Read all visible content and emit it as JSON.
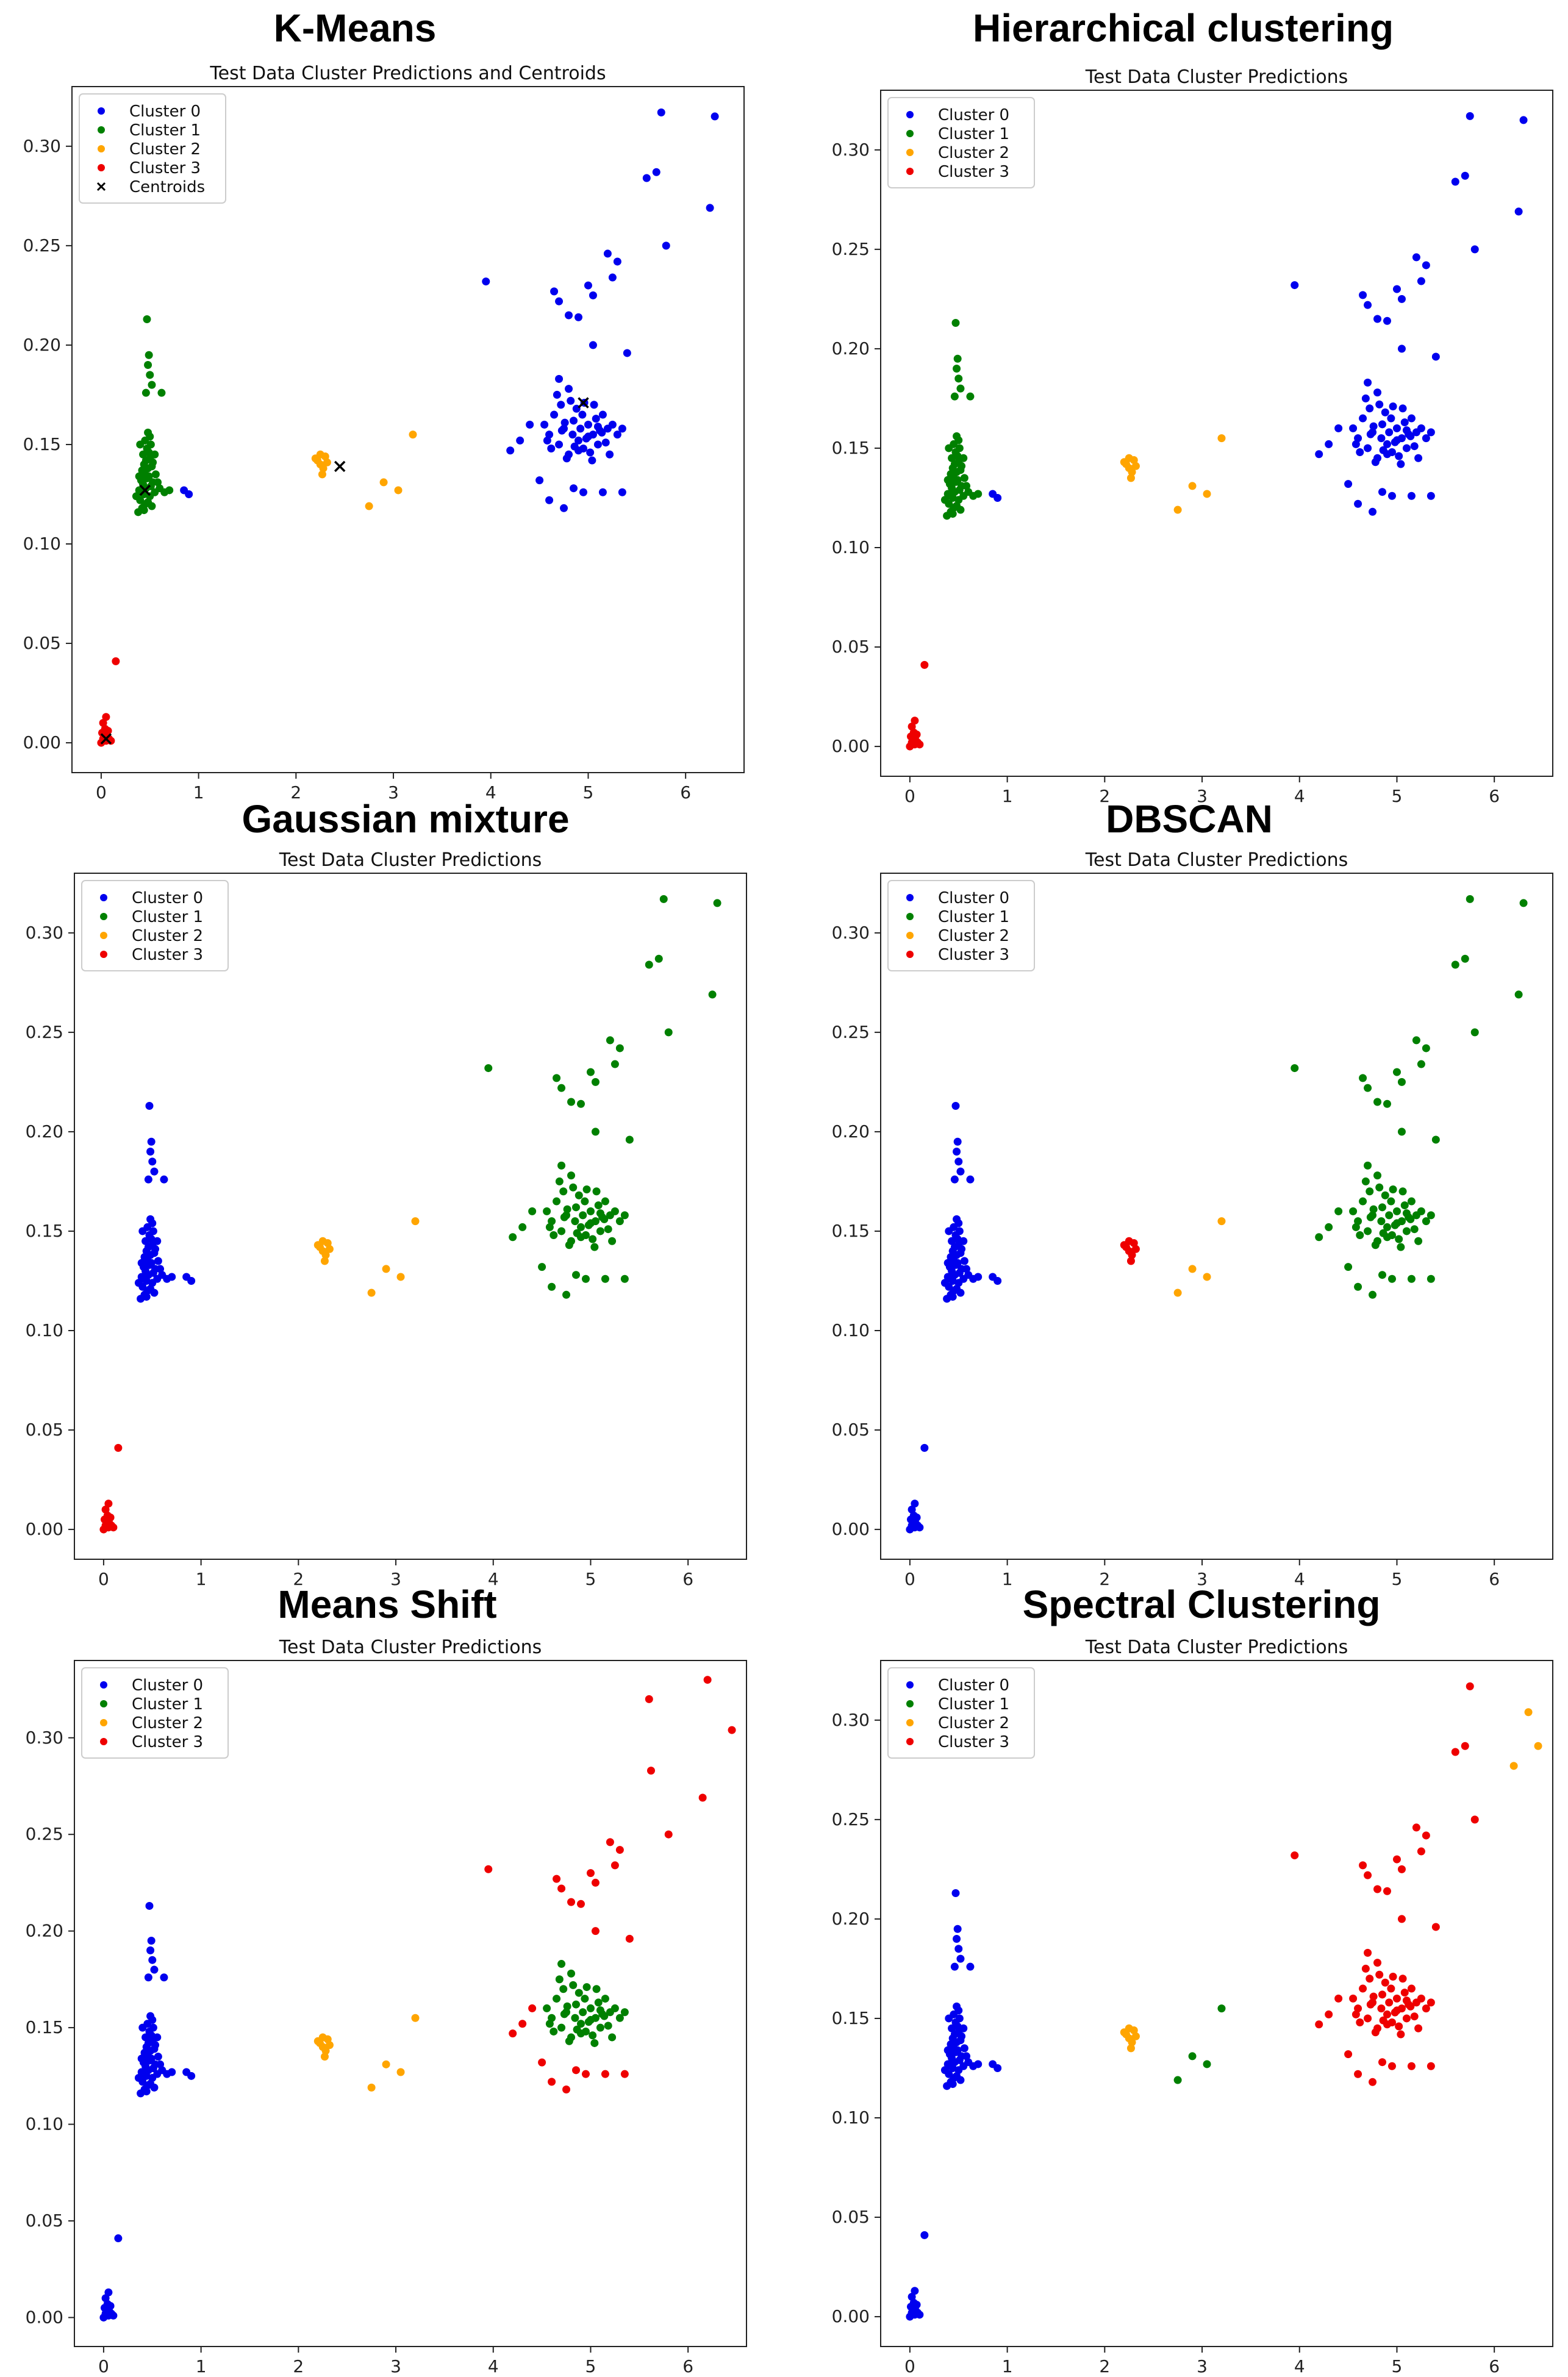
{
  "figure": {
    "panel_titles": [
      "K-Means",
      "Hierarchical clustering",
      "Gaussian mixture",
      "DBSCAN",
      "Means Shift",
      "Spectral Clustering"
    ]
  },
  "colors": {
    "Cluster 0": "#0000ee",
    "Cluster 1": "#008000",
    "Cluster 2": "#ffa500",
    "Cluster 3": "#ee0000",
    "Centroids": "#000000"
  },
  "chart_data": [
    {
      "type": "scatter",
      "panel": "K-Means",
      "title": "Test Data Cluster Predictions and Centroids",
      "xlim": [
        -0.3,
        6.6
      ],
      "ylim": [
        -0.015,
        0.33
      ],
      "xticks": [
        0,
        1,
        2,
        3,
        4,
        5,
        6
      ],
      "yticks": [
        0.0,
        0.05,
        0.1,
        0.15,
        0.2,
        0.25,
        0.3
      ],
      "legend": [
        "Cluster 0",
        "Cluster 1",
        "Cluster 2",
        "Cluster 3",
        "Centroids"
      ],
      "legend_position": "upper-left",
      "assign": {
        "groupA": "Cluster 1",
        "groupB": "Cluster 0",
        "groupC": "Cluster 2",
        "groupD": "Cluster 3",
        "groupE": "Cluster 0",
        "groupF": "Cluster 0",
        "groupG": "Cluster 2"
      },
      "centroids": [
        [
          0.45,
          0.127
        ],
        [
          2.45,
          0.139
        ],
        [
          4.95,
          0.171
        ],
        [
          0.05,
          0.002
        ]
      ]
    },
    {
      "type": "scatter",
      "panel": "Hierarchical clustering",
      "title": "Test Data Cluster Predictions",
      "xlim": [
        -0.3,
        6.6
      ],
      "ylim": [
        -0.015,
        0.33
      ],
      "xticks": [
        0,
        1,
        2,
        3,
        4,
        5,
        6
      ],
      "yticks": [
        0.0,
        0.05,
        0.1,
        0.15,
        0.2,
        0.25,
        0.3
      ],
      "legend": [
        "Cluster 0",
        "Cluster 1",
        "Cluster 2",
        "Cluster 3"
      ],
      "legend_position": "upper-left",
      "assign": {
        "groupA": "Cluster 1",
        "groupB": "Cluster 0",
        "groupC": "Cluster 2",
        "groupD": "Cluster 3",
        "groupE": "Cluster 0",
        "groupF": "Cluster 0",
        "groupG": "Cluster 2"
      }
    },
    {
      "type": "scatter",
      "panel": "Gaussian mixture",
      "title": "Test Data Cluster Predictions",
      "xlim": [
        -0.3,
        6.6
      ],
      "ylim": [
        -0.015,
        0.33
      ],
      "xticks": [
        0,
        1,
        2,
        3,
        4,
        5,
        6
      ],
      "yticks": [
        0.0,
        0.05,
        0.1,
        0.15,
        0.2,
        0.25,
        0.3
      ],
      "legend": [
        "Cluster 0",
        "Cluster 1",
        "Cluster 2",
        "Cluster 3"
      ],
      "legend_position": "upper-left",
      "assign": {
        "groupA": "Cluster 0",
        "groupB": "Cluster 1",
        "groupC": "Cluster 2",
        "groupD": "Cluster 3",
        "groupE": "Cluster 0",
        "groupF": "Cluster 1",
        "groupG": "Cluster 2"
      }
    },
    {
      "type": "scatter",
      "panel": "DBSCAN",
      "title": "Test Data Cluster Predictions",
      "xlim": [
        -0.3,
        6.6
      ],
      "ylim": [
        -0.015,
        0.33
      ],
      "xticks": [
        0,
        1,
        2,
        3,
        4,
        5,
        6
      ],
      "yticks": [
        0.0,
        0.05,
        0.1,
        0.15,
        0.2,
        0.25,
        0.3
      ],
      "legend": [
        "Cluster 0",
        "Cluster 1",
        "Cluster 2",
        "Cluster 3"
      ],
      "legend_position": "upper-left",
      "assign": {
        "groupA": "Cluster 0",
        "groupB": "Cluster 1",
        "groupC": "Cluster 3",
        "groupD": "Cluster 0",
        "groupE": "Cluster 0",
        "groupF": "Cluster 1",
        "groupG": "Cluster 2"
      }
    },
    {
      "type": "scatter",
      "panel": "Means Shift",
      "title": "Test Data Cluster Predictions",
      "xlim": [
        -0.3,
        6.6
      ],
      "ylim": [
        -0.015,
        0.34
      ],
      "xticks": [
        0,
        1,
        2,
        3,
        4,
        5,
        6
      ],
      "yticks": [
        0.0,
        0.05,
        0.1,
        0.15,
        0.2,
        0.25,
        0.3
      ],
      "legend": [
        "Cluster 0",
        "Cluster 1",
        "Cluster 2",
        "Cluster 3"
      ],
      "legend_position": "upper-left",
      "assign": {
        "groupA": "Cluster 0",
        "groupB": "Cluster 1",
        "groupC": "Cluster 2",
        "groupD": "Cluster 0",
        "groupE": "Cluster 0",
        "groupF": "Cluster 3",
        "groupG": "Cluster 2"
      },
      "extreme_override": [
        [
          5.6,
          0.32
        ],
        [
          5.62,
          0.283
        ],
        [
          6.15,
          0.269
        ],
        [
          6.2,
          0.33
        ],
        [
          6.45,
          0.304
        ]
      ]
    },
    {
      "type": "scatter",
      "panel": "Spectral Clustering",
      "title": "Test Data Cluster Predictions",
      "xlim": [
        -0.3,
        6.6
      ],
      "ylim": [
        -0.015,
        0.33
      ],
      "xticks": [
        0,
        1,
        2,
        3,
        4,
        5,
        6
      ],
      "yticks": [
        0.0,
        0.05,
        0.1,
        0.15,
        0.2,
        0.25,
        0.3
      ],
      "legend": [
        "Cluster 0",
        "Cluster 1",
        "Cluster 2",
        "Cluster 3"
      ],
      "legend_position": "upper-left",
      "assign": {
        "groupA": "Cluster 0",
        "groupB": "Cluster 3",
        "groupC": "Cluster 2",
        "groupD": "Cluster 0",
        "groupE": "Cluster 0",
        "groupF": "Cluster 3",
        "groupG": "Cluster 1",
        "groupH": "Cluster 2"
      }
    }
  ],
  "data_groups": {
    "groupA": [
      [
        0.38,
        0.116
      ],
      [
        0.42,
        0.118
      ],
      [
        0.45,
        0.12
      ],
      [
        0.4,
        0.122
      ],
      [
        0.48,
        0.121
      ],
      [
        0.52,
        0.119
      ],
      [
        0.36,
        0.124
      ],
      [
        0.44,
        0.125
      ],
      [
        0.5,
        0.124
      ],
      [
        0.55,
        0.126
      ],
      [
        0.39,
        0.127
      ],
      [
        0.46,
        0.128
      ],
      [
        0.43,
        0.13
      ],
      [
        0.51,
        0.129
      ],
      [
        0.41,
        0.132
      ],
      [
        0.47,
        0.133
      ],
      [
        0.53,
        0.131
      ],
      [
        0.45,
        0.135
      ],
      [
        0.49,
        0.134
      ],
      [
        0.42,
        0.137
      ],
      [
        0.48,
        0.138
      ],
      [
        0.44,
        0.14
      ],
      [
        0.52,
        0.139
      ],
      [
        0.46,
        0.142
      ],
      [
        0.5,
        0.143
      ],
      [
        0.43,
        0.145
      ],
      [
        0.49,
        0.146
      ],
      [
        0.47,
        0.148
      ],
      [
        0.51,
        0.15
      ],
      [
        0.45,
        0.152
      ],
      [
        0.5,
        0.154
      ],
      [
        0.48,
        0.156
      ],
      [
        0.6,
        0.128
      ],
      [
        0.65,
        0.126
      ],
      [
        0.7,
        0.127
      ],
      [
        0.58,
        0.131
      ],
      [
        0.46,
        0.176
      ],
      [
        0.52,
        0.18
      ],
      [
        0.5,
        0.185
      ],
      [
        0.48,
        0.19
      ],
      [
        0.49,
        0.195
      ],
      [
        0.47,
        0.213
      ],
      [
        0.62,
        0.176
      ],
      [
        0.4,
        0.15
      ],
      [
        0.55,
        0.145
      ],
      [
        0.41,
        0.126
      ],
      [
        0.44,
        0.117
      ],
      [
        0.53,
        0.141
      ],
      [
        0.39,
        0.134
      ],
      [
        0.56,
        0.135
      ]
    ],
    "groupB": [
      [
        4.6,
        0.155
      ],
      [
        4.7,
        0.15
      ],
      [
        4.75,
        0.158
      ],
      [
        4.8,
        0.145
      ],
      [
        4.85,
        0.162
      ],
      [
        4.9,
        0.152
      ],
      [
        4.95,
        0.148
      ],
      [
        5.0,
        0.16
      ],
      [
        5.05,
        0.155
      ],
      [
        5.1,
        0.15
      ],
      [
        5.15,
        0.165
      ],
      [
        5.2,
        0.158
      ],
      [
        4.65,
        0.165
      ],
      [
        4.72,
        0.17
      ],
      [
        4.78,
        0.143
      ],
      [
        4.82,
        0.172
      ],
      [
        4.88,
        0.168
      ],
      [
        4.92,
        0.158
      ],
      [
        4.98,
        0.153
      ],
      [
        5.02,
        0.146
      ],
      [
        5.08,
        0.163
      ],
      [
        5.12,
        0.157
      ],
      [
        5.18,
        0.151
      ],
      [
        5.25,
        0.16
      ],
      [
        5.3,
        0.155
      ],
      [
        4.55,
        0.16
      ],
      [
        4.62,
        0.148
      ],
      [
        4.68,
        0.175
      ],
      [
        4.84,
        0.155
      ],
      [
        4.94,
        0.165
      ],
      [
        5.06,
        0.17
      ],
      [
        5.22,
        0.145
      ],
      [
        4.76,
        0.161
      ],
      [
        4.86,
        0.149
      ],
      [
        4.96,
        0.171
      ],
      [
        5.04,
        0.142
      ],
      [
        5.14,
        0.156
      ],
      [
        4.73,
        0.157
      ],
      [
        5.35,
        0.158
      ],
      [
        4.58,
        0.152
      ],
      [
        4.7,
        0.183
      ],
      [
        4.8,
        0.178
      ],
      [
        4.9,
        0.147
      ],
      [
        5.0,
        0.154
      ],
      [
        5.1,
        0.159
      ]
    ],
    "groupC": [
      [
        2.2,
        0.143
      ],
      [
        2.25,
        0.14
      ],
      [
        2.28,
        0.138
      ],
      [
        2.3,
        0.144
      ],
      [
        2.27,
        0.135
      ],
      [
        2.22,
        0.142
      ],
      [
        2.32,
        0.141
      ],
      [
        2.25,
        0.145
      ]
    ],
    "groupD": [
      [
        0.0,
        0.0
      ],
      [
        0.02,
        0.002
      ],
      [
        0.05,
        0.001
      ],
      [
        0.03,
        0.004
      ],
      [
        0.06,
        0.003
      ],
      [
        0.08,
        0.002
      ],
      [
        0.01,
        0.005
      ],
      [
        0.04,
        0.007
      ],
      [
        0.1,
        0.001
      ],
      [
        0.07,
        0.006
      ],
      [
        0.02,
        0.01
      ],
      [
        0.05,
        0.013
      ],
      [
        0.15,
        0.041
      ]
    ],
    "groupE": [
      [
        0.9,
        0.125
      ],
      [
        0.85,
        0.127
      ]
    ],
    "groupF": [
      [
        3.95,
        0.232
      ],
      [
        4.65,
        0.227
      ],
      [
        4.7,
        0.222
      ],
      [
        4.8,
        0.215
      ],
      [
        4.9,
        0.214
      ],
      [
        5.0,
        0.23
      ],
      [
        5.05,
        0.225
      ],
      [
        5.2,
        0.246
      ],
      [
        5.3,
        0.242
      ],
      [
        5.25,
        0.234
      ],
      [
        5.4,
        0.196
      ],
      [
        5.05,
        0.2
      ],
      [
        4.4,
        0.16
      ],
      [
        4.3,
        0.152
      ],
      [
        4.2,
        0.147
      ],
      [
        4.5,
        0.132
      ],
      [
        4.6,
        0.122
      ],
      [
        4.75,
        0.118
      ],
      [
        4.95,
        0.126
      ],
      [
        5.15,
        0.126
      ],
      [
        5.35,
        0.126
      ],
      [
        4.85,
        0.128
      ],
      [
        5.6,
        0.284
      ],
      [
        5.7,
        0.287
      ],
      [
        5.8,
        0.25
      ],
      [
        5.75,
        0.317
      ],
      [
        6.25,
        0.269
      ],
      [
        6.3,
        0.315
      ]
    ],
    "groupG": [
      [
        2.75,
        0.119
      ],
      [
        2.9,
        0.131
      ],
      [
        3.05,
        0.127
      ],
      [
        3.2,
        0.155
      ]
    ],
    "groupH": [
      [
        6.2,
        0.277
      ],
      [
        6.35,
        0.304
      ],
      [
        6.45,
        0.287
      ]
    ]
  }
}
